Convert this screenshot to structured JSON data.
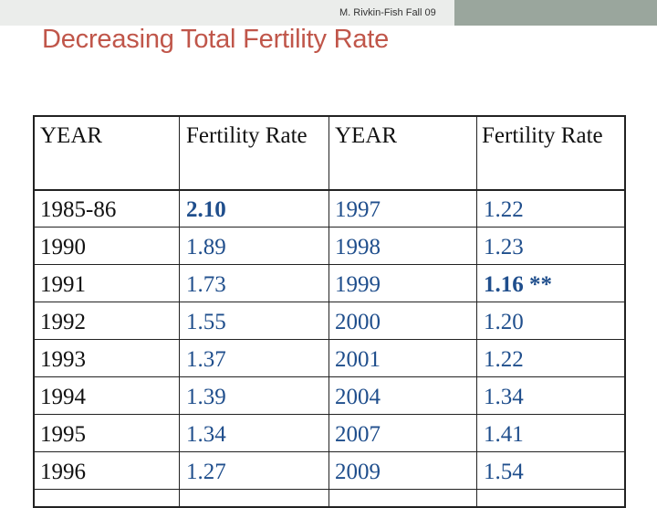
{
  "header": {
    "credit": "M. Rivkin-Fish Fall 09",
    "title": "Decreasing Total Fertility Rate"
  },
  "colors": {
    "title": "#c0564a",
    "values": "#1f4e8c",
    "topbar": "#9aa69d"
  },
  "table": {
    "headers": [
      "YEAR",
      "Fertility Rate",
      "YEAR",
      "Fertility Rate"
    ],
    "rows": [
      [
        "1985-86",
        "2.10",
        "1997",
        "1.22"
      ],
      [
        "1990",
        "1.89",
        "1998",
        "1.23"
      ],
      [
        "1991",
        "1.73",
        "1999",
        "1.16 **"
      ],
      [
        "1992",
        "1.55",
        "2000",
        "1.20"
      ],
      [
        "1993",
        "1.37",
        "2001",
        "1.22"
      ],
      [
        "1994",
        "1.39",
        "2004",
        "1.34"
      ],
      [
        "1995",
        "1.34",
        "2007",
        "1.41"
      ],
      [
        "1996",
        "1.27",
        "2009",
        "1.54"
      ]
    ]
  }
}
